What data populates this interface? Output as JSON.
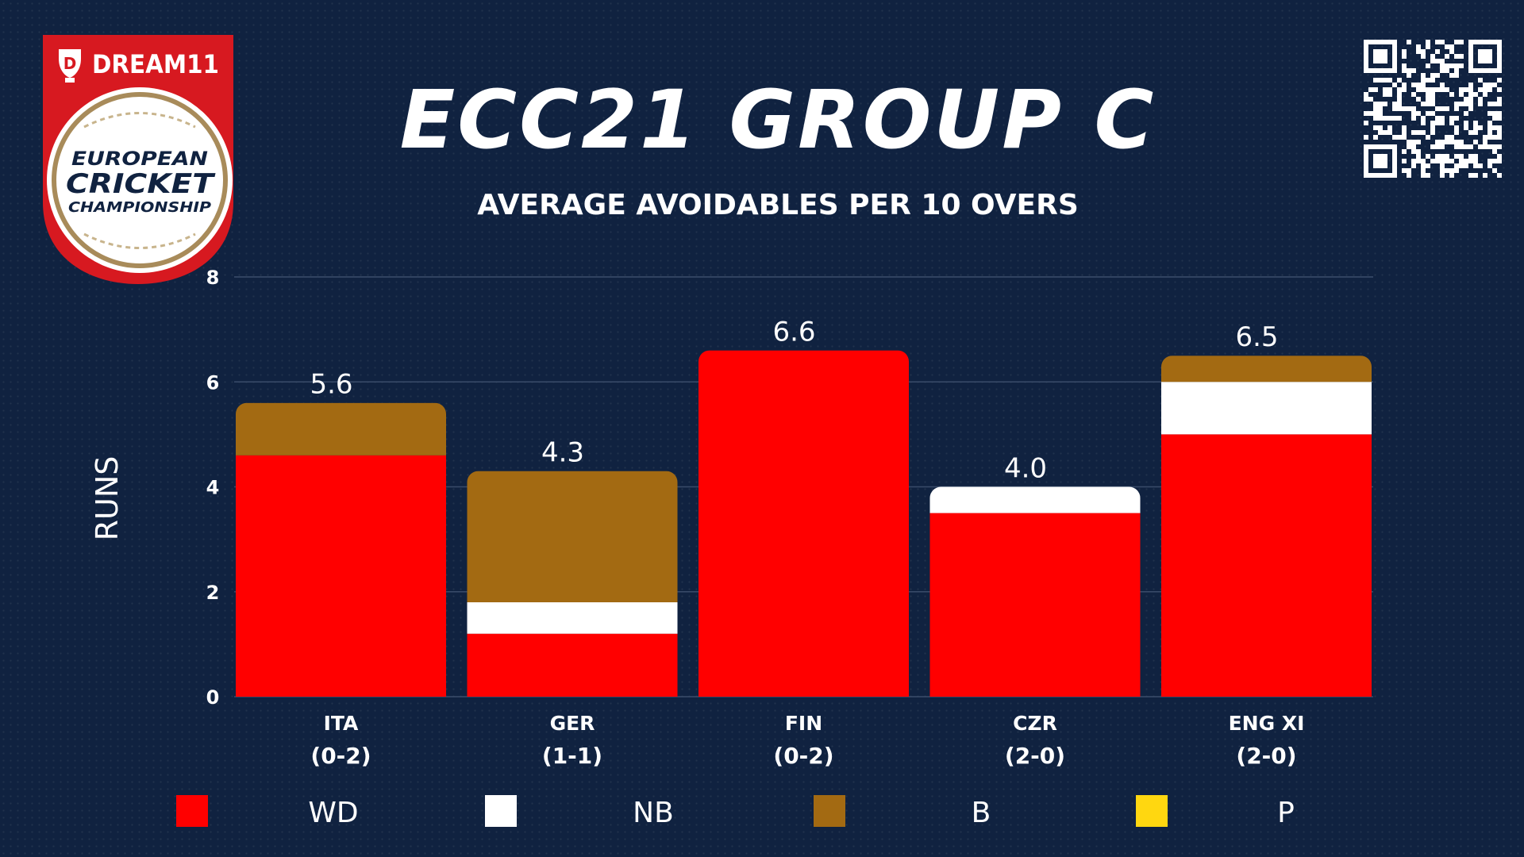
{
  "brand": {
    "sponsor": "DREAM11",
    "tournament_lines": [
      "EUROPEAN",
      "CRICKET",
      "CHAMPIONSHIP"
    ]
  },
  "title": "ECC21 GROUP C",
  "subtitle": "AVERAGE AVOIDABLES PER 10 OVERS",
  "colors": {
    "background": "#102240",
    "WD": "#ff0000",
    "NB": "#ffffff",
    "B": "#a36a12",
    "P": "#ffd710",
    "text": "#ffffff",
    "grid": "#3a4c6a"
  },
  "chart_data": {
    "type": "bar",
    "stacked": true,
    "ylabel": "RUNS",
    "ylim": [
      0,
      8
    ],
    "yticks": [
      0,
      2,
      4,
      6,
      8
    ],
    "categories": [
      {
        "team": "ITA",
        "record": "(0-2)"
      },
      {
        "team": "GER",
        "record": "(1-1)"
      },
      {
        "team": "FIN",
        "record": "(0-2)"
      },
      {
        "team": "CZR",
        "record": "(2-0)"
      },
      {
        "team": "ENG XI",
        "record": "(2-0)"
      }
    ],
    "series": [
      {
        "name": "WD",
        "color": "#ff0000",
        "values": [
          4.6,
          1.2,
          6.6,
          3.5,
          5.0
        ]
      },
      {
        "name": "NB",
        "color": "#ffffff",
        "values": [
          0,
          0.6,
          0,
          0.5,
          1.0
        ]
      },
      {
        "name": "B",
        "color": "#a36a12",
        "values": [
          1.0,
          2.5,
          0,
          0,
          0.5
        ]
      },
      {
        "name": "P",
        "color": "#ffd710",
        "values": [
          0,
          0,
          0,
          0,
          0
        ]
      }
    ],
    "totals": [
      "5.6",
      "4.3",
      "6.6",
      "4.0",
      "6.5"
    ],
    "legend_position": "bottom",
    "grid": true
  }
}
